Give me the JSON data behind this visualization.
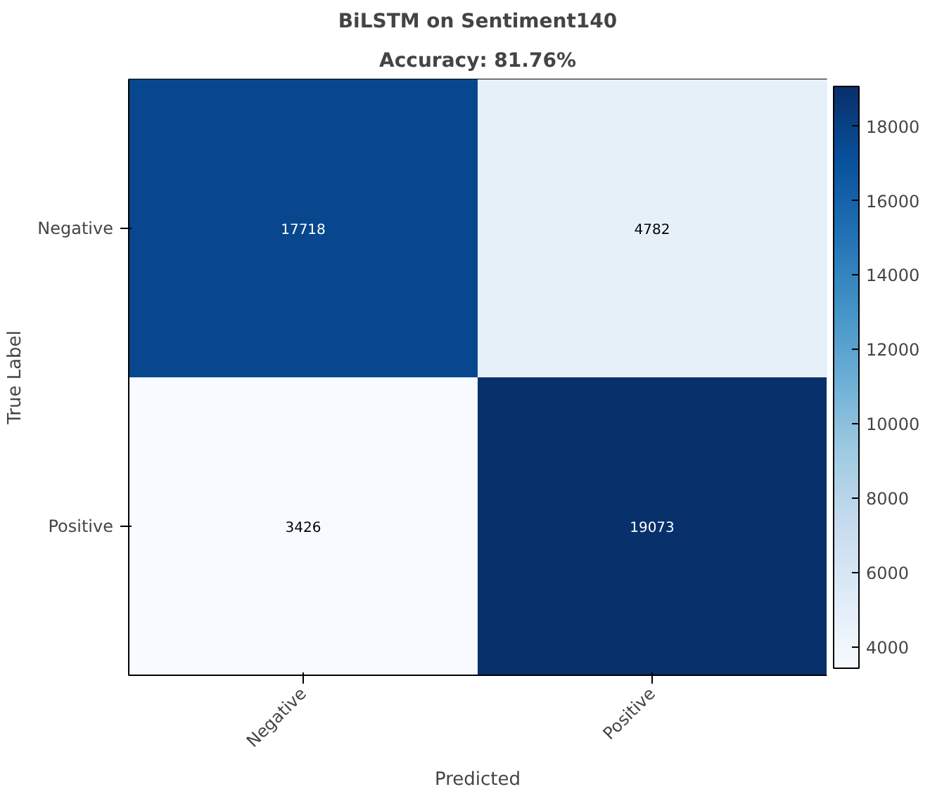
{
  "chart_data": {
    "type": "heatmap",
    "title": "BiLSTM on Sentiment140",
    "subtitle": "Accuracy: 81.76%",
    "xlabel": "Predicted",
    "ylabel": "True Label",
    "categories": [
      "Negative",
      "Positive"
    ],
    "y_categories": [
      "Negative",
      "Positive"
    ],
    "cells": [
      [
        17718,
        4782
      ],
      [
        3426,
        19073
      ]
    ],
    "data_labels": true,
    "clim": [
      3426,
      19073
    ],
    "cticks": [
      4000,
      6000,
      8000,
      10000,
      12000,
      14000,
      16000,
      18000
    ]
  }
}
